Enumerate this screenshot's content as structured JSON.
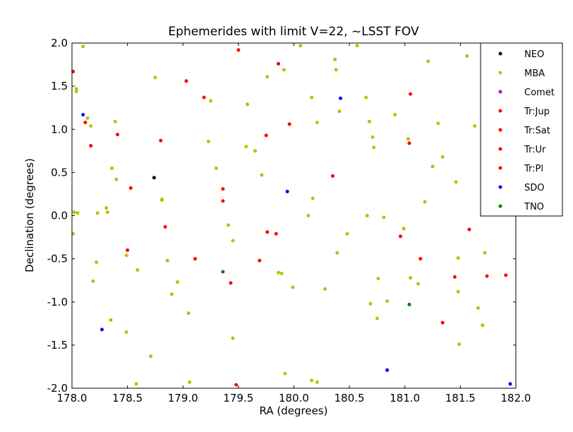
{
  "chart_data": {
    "type": "scatter",
    "title": "Ephemerides with limit V=22, ~LSST FOV",
    "xlabel": "RA (degrees)",
    "ylabel": "Declination (degrees)",
    "xlim": [
      178.0,
      182.0
    ],
    "ylim": [
      -2.0,
      2.0
    ],
    "xticks": [
      "178.0",
      "178.5",
      "179.0",
      "179.5",
      "180.0",
      "180.5",
      "181.0",
      "181.5",
      "182.0"
    ],
    "yticks": [
      "2.0",
      "1.5",
      "1.0",
      "0.5",
      "0.0",
      "-0.5",
      "-1.0",
      "-1.5",
      "-2.0"
    ],
    "legend_position": "top-right (outside plot)",
    "grid": false,
    "series": [
      {
        "name": "NEO",
        "color": "#000000",
        "points": [
          [
            178.74,
            0.44
          ]
        ]
      },
      {
        "name": "MBA",
        "color": "#bfbf00",
        "points": [
          [
            178.1,
            1.96
          ],
          [
            178.04,
            1.47
          ],
          [
            178.04,
            1.44
          ],
          [
            178.14,
            1.13
          ],
          [
            178.17,
            1.04
          ],
          [
            178.02,
            0.04
          ],
          [
            178.05,
            0.03
          ],
          [
            178.01,
            -0.21
          ],
          [
            178.23,
            0.03
          ],
          [
            178.31,
            0.09
          ],
          [
            178.32,
            0.04
          ],
          [
            178.22,
            -0.54
          ],
          [
            178.19,
            -0.76
          ],
          [
            178.39,
            1.09
          ],
          [
            178.36,
            0.55
          ],
          [
            178.4,
            0.42
          ],
          [
            178.49,
            -0.46
          ],
          [
            178.35,
            -1.21
          ],
          [
            178.49,
            -1.35
          ],
          [
            178.59,
            -0.63
          ],
          [
            178.75,
            1.6
          ],
          [
            178.81,
            0.19
          ],
          [
            178.81,
            0.18
          ],
          [
            178.86,
            -0.52
          ],
          [
            178.9,
            -0.91
          ],
          [
            178.95,
            -0.77
          ],
          [
            178.71,
            -1.63
          ],
          [
            178.58,
            -1.95
          ],
          [
            179.05,
            -1.13
          ],
          [
            179.06,
            -1.93
          ],
          [
            179.23,
            0.86
          ],
          [
            179.25,
            1.33
          ],
          [
            179.3,
            0.55
          ],
          [
            179.41,
            -0.11
          ],
          [
            179.45,
            -0.29
          ],
          [
            179.45,
            -1.42
          ],
          [
            179.58,
            1.29
          ],
          [
            179.57,
            0.8
          ],
          [
            179.65,
            0.75
          ],
          [
            179.71,
            0.47
          ],
          [
            179.76,
            1.61
          ],
          [
            179.91,
            1.69
          ],
          [
            179.86,
            -0.66
          ],
          [
            179.89,
            -0.67
          ],
          [
            179.99,
            -0.83
          ],
          [
            179.92,
            -1.83
          ],
          [
            180.06,
            1.97
          ],
          [
            180.16,
            1.37
          ],
          [
            180.21,
            1.08
          ],
          [
            180.17,
            0.2
          ],
          [
            180.13,
            0.0
          ],
          [
            180.28,
            -0.85
          ],
          [
            180.16,
            -1.91
          ],
          [
            180.21,
            -1.93
          ],
          [
            180.37,
            1.81
          ],
          [
            180.38,
            1.69
          ],
          [
            180.41,
            1.21
          ],
          [
            180.39,
            -0.43
          ],
          [
            180.48,
            -0.21
          ],
          [
            180.57,
            1.97
          ],
          [
            180.65,
            1.37
          ],
          [
            180.68,
            1.09
          ],
          [
            180.71,
            0.91
          ],
          [
            180.72,
            0.79
          ],
          [
            180.66,
            0.0
          ],
          [
            180.69,
            -1.02
          ],
          [
            180.76,
            -0.73
          ],
          [
            180.75,
            -1.19
          ],
          [
            180.81,
            -0.02
          ],
          [
            180.84,
            -0.99
          ],
          [
            180.91,
            1.17
          ],
          [
            181.03,
            0.89
          ],
          [
            180.99,
            -0.15
          ],
          [
            181.05,
            -0.72
          ],
          [
            181.12,
            -0.79
          ],
          [
            181.21,
            1.79
          ],
          [
            181.25,
            0.57
          ],
          [
            181.18,
            0.16
          ],
          [
            181.3,
            1.07
          ],
          [
            181.34,
            0.68
          ],
          [
            181.46,
            0.39
          ],
          [
            181.48,
            -0.49
          ],
          [
            181.48,
            -0.88
          ],
          [
            181.49,
            -1.49
          ],
          [
            181.56,
            1.85
          ],
          [
            181.63,
            1.04
          ],
          [
            181.72,
            -0.43
          ],
          [
            181.7,
            -1.27
          ],
          [
            181.66,
            -1.07
          ]
        ]
      },
      {
        "name": "Comet",
        "color": "#bf00bf",
        "points": []
      },
      {
        "name": "Tr:Jup",
        "color": "#ff0000",
        "points": [
          [
            178.01,
            1.67
          ],
          [
            178.12,
            1.08
          ],
          [
            178.17,
            0.81
          ],
          [
            178.41,
            0.94
          ],
          [
            178.53,
            0.32
          ],
          [
            178.5,
            -0.4
          ],
          [
            178.8,
            0.87
          ],
          [
            178.84,
            -0.13
          ],
          [
            179.03,
            1.56
          ],
          [
            179.19,
            1.37
          ],
          [
            179.11,
            -0.5
          ],
          [
            179.36,
            0.31
          ],
          [
            179.36,
            0.17
          ],
          [
            179.43,
            -0.78
          ],
          [
            179.5,
            1.92
          ],
          [
            179.48,
            -1.96
          ],
          [
            179.75,
            0.93
          ],
          [
            179.76,
            -0.19
          ],
          [
            179.84,
            -0.21
          ],
          [
            179.69,
            -0.52
          ],
          [
            179.86,
            1.76
          ],
          [
            179.96,
            1.06
          ],
          [
            180.35,
            0.46
          ],
          [
            181.05,
            1.41
          ],
          [
            181.04,
            0.84
          ],
          [
            180.96,
            -0.24
          ],
          [
            181.14,
            -0.5
          ],
          [
            181.34,
            -1.24
          ],
          [
            181.45,
            -0.71
          ],
          [
            181.58,
            -0.16
          ],
          [
            181.74,
            -0.7
          ],
          [
            181.91,
            -0.69
          ]
        ]
      },
      {
        "name": "Tr:Sat",
        "color": "#ff0000",
        "points": []
      },
      {
        "name": "Tr:Ur",
        "color": "#ff0000",
        "points": []
      },
      {
        "name": "Tr:Pl",
        "color": "#ff0000",
        "points": []
      },
      {
        "name": "SDO",
        "color": "#0000ff",
        "points": [
          [
            178.1,
            1.17
          ],
          [
            178.27,
            -1.32
          ],
          [
            179.94,
            0.28
          ],
          [
            180.42,
            1.36
          ],
          [
            180.84,
            -1.79
          ],
          [
            181.95,
            -1.95
          ]
        ]
      },
      {
        "name": "TNO",
        "color": "#008000",
        "points": [
          [
            179.36,
            -0.65
          ],
          [
            181.04,
            -1.03
          ]
        ]
      }
    ]
  }
}
